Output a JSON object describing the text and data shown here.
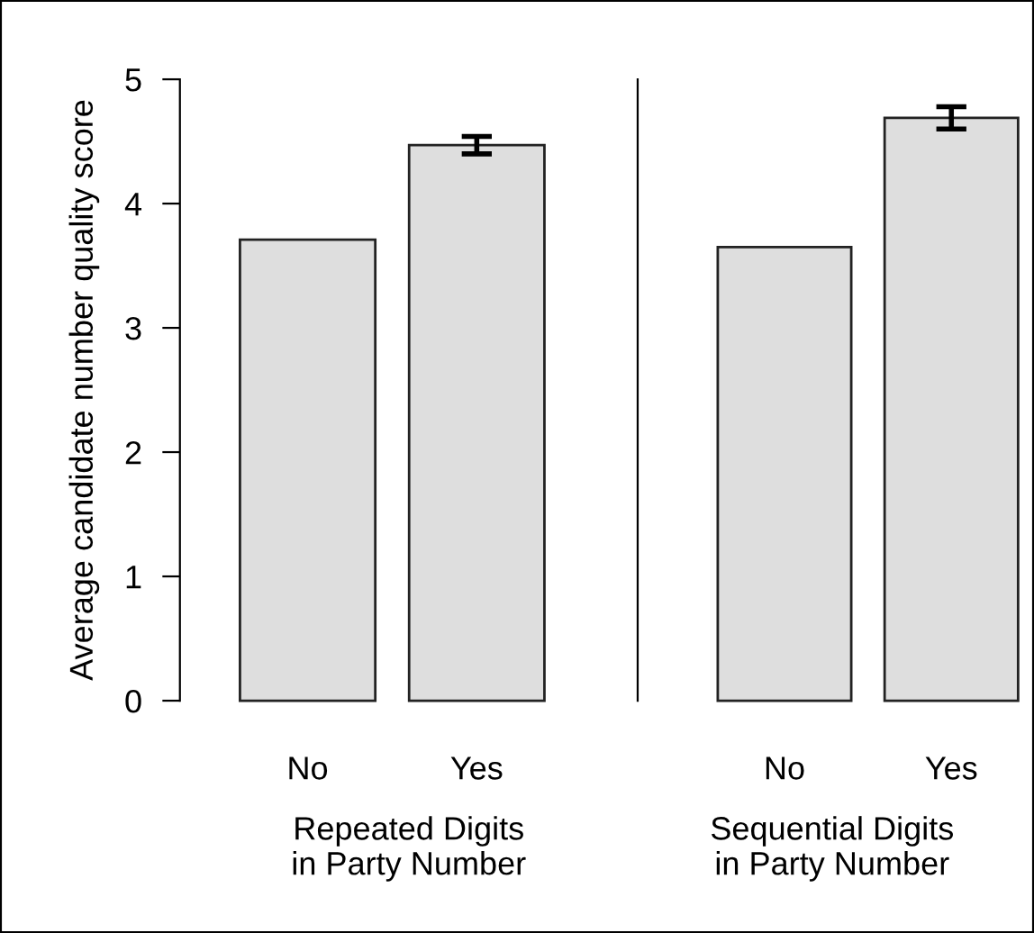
{
  "chart_data": [
    {
      "type": "bar",
      "categories": [
        "No",
        "Yes"
      ],
      "values": [
        3.71,
        4.47
      ],
      "errors": [
        null,
        0.07
      ],
      "color": "#dedede",
      "xlabel": "Repeated Digits\nin Party Number",
      "ylabel": "Average candidate number quality score",
      "ylim": [
        0,
        5
      ],
      "yticks": [
        0,
        1,
        2,
        3,
        4,
        5
      ],
      "grid": false,
      "legend": false
    },
    {
      "type": "bar",
      "categories": [
        "No",
        "Yes"
      ],
      "values": [
        3.65,
        4.69
      ],
      "errors": [
        null,
        0.09
      ],
      "color": "#dedede",
      "xlabel": "Sequential Digits\nin Party Number",
      "ylim": [
        0,
        5
      ],
      "yticks": [
        0,
        1,
        2,
        3,
        4,
        5
      ],
      "tick_labels": "x",
      "grid": false,
      "legend": false
    }
  ]
}
